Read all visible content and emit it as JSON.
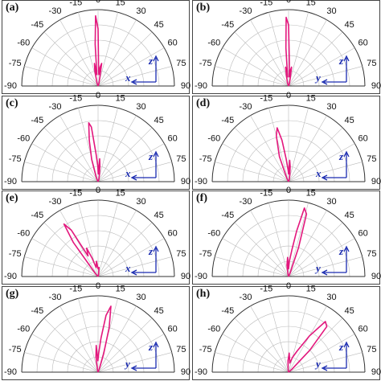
{
  "chart_data": [
    {
      "type": "polar",
      "label": "(a)",
      "color": "#e3177d",
      "rlim": [
        0,
        1
      ],
      "rticks": [
        0.2,
        0.4,
        0.6,
        0.8,
        1
      ],
      "thetaticks": [
        -90,
        -75,
        -60,
        -45,
        -30,
        -15,
        0,
        15,
        30,
        45,
        60,
        75,
        90
      ],
      "axis_labels": [
        "z",
        "x"
      ],
      "theta": [
        -90,
        -20,
        -12,
        -9,
        -6,
        -4,
        -2,
        0,
        2,
        4,
        6,
        9,
        12,
        20,
        90
      ],
      "r": [
        0,
        0.04,
        0.2,
        0.3,
        0.15,
        0.55,
        0.92,
        0.75,
        0.2,
        0.15,
        0.25,
        0.3,
        0.1,
        0.03,
        0
      ]
    },
    {
      "type": "polar",
      "label": "(b)",
      "color": "#e3177d",
      "rlim": [
        0,
        1
      ],
      "rticks": [
        0.2,
        0.4,
        0.6,
        0.8,
        1
      ],
      "thetaticks": [
        -90,
        -75,
        -60,
        -45,
        -30,
        -15,
        0,
        15,
        30,
        45,
        60,
        75,
        90
      ],
      "axis_labels": [
        "z",
        "y"
      ],
      "theta": [
        -90,
        -20,
        -12,
        -9,
        -6,
        -4,
        -2,
        0,
        2,
        4,
        6,
        9,
        12,
        20,
        90
      ],
      "r": [
        0,
        0.04,
        0.12,
        0.25,
        0.12,
        0.5,
        0.9,
        0.8,
        0.3,
        0.12,
        0.2,
        0.25,
        0.1,
        0.03,
        0
      ]
    },
    {
      "type": "polar",
      "label": "(c)",
      "color": "#e3177d",
      "rlim": [
        0,
        1
      ],
      "rticks": [
        0.2,
        0.4,
        0.6,
        0.8,
        1
      ],
      "thetaticks": [
        -90,
        -75,
        -60,
        -45,
        -30,
        -15,
        0,
        15,
        30,
        45,
        60,
        75,
        90
      ],
      "axis_labels": [
        "z",
        "x"
      ],
      "theta": [
        -90,
        -25,
        -16,
        -12,
        -9,
        -7,
        -4,
        -1,
        1,
        4,
        7,
        12,
        20,
        90
      ],
      "r": [
        0,
        0.05,
        0.3,
        0.55,
        0.78,
        0.72,
        0.35,
        0.2,
        0.1,
        0.3,
        0.2,
        0.08,
        0.03,
        0
      ]
    },
    {
      "type": "polar",
      "label": "(d)",
      "color": "#e3177d",
      "rlim": [
        0,
        1
      ],
      "rticks": [
        0.2,
        0.4,
        0.6,
        0.8,
        1
      ],
      "thetaticks": [
        -90,
        -75,
        -60,
        -45,
        -30,
        -15,
        0,
        15,
        30,
        45,
        60,
        75,
        90
      ],
      "axis_labels": [
        "z",
        "x"
      ],
      "theta": [
        -90,
        -28,
        -20,
        -15,
        -12,
        -9,
        -6,
        -2,
        0,
        3,
        6,
        10,
        20,
        90
      ],
      "r": [
        0,
        0.05,
        0.35,
        0.62,
        0.72,
        0.55,
        0.3,
        0.15,
        0.1,
        0.28,
        0.2,
        0.1,
        0.03,
        0
      ]
    },
    {
      "type": "polar",
      "label": "(e)",
      "color": "#e3177d",
      "rlim": [
        0,
        1
      ],
      "rticks": [
        0.2,
        0.4,
        0.6,
        0.8,
        1
      ],
      "thetaticks": [
        -90,
        -75,
        -60,
        -45,
        -30,
        -15,
        0,
        15,
        30,
        45,
        60,
        75,
        90
      ],
      "axis_labels": [
        "z",
        "x"
      ],
      "theta": [
        -90,
        -42,
        -36,
        -33,
        -30,
        -26,
        -22,
        -18,
        -12,
        -6,
        0,
        6,
        15,
        90
      ],
      "r": [
        0,
        0.05,
        0.55,
        0.82,
        0.7,
        0.3,
        0.4,
        0.25,
        0.12,
        0.2,
        0.1,
        0.12,
        0.03,
        0
      ]
    },
    {
      "type": "polar",
      "label": "(f)",
      "color": "#e3177d",
      "rlim": [
        0,
        1
      ],
      "rticks": [
        0.2,
        0.4,
        0.6,
        0.8,
        1
      ],
      "thetaticks": [
        -90,
        -75,
        -60,
        -45,
        -30,
        -15,
        0,
        15,
        30,
        45,
        60,
        75,
        90
      ],
      "axis_labels": [
        "z",
        "y"
      ],
      "theta": [
        -90,
        -15,
        -8,
        -3,
        0,
        3,
        7,
        10,
        13,
        16,
        19,
        24,
        90
      ],
      "r": [
        0,
        0.03,
        0.15,
        0.25,
        0.1,
        0.2,
        0.35,
        0.6,
        0.92,
        0.85,
        0.4,
        0.05,
        0
      ]
    },
    {
      "type": "polar",
      "label": "(g)",
      "color": "#e3177d",
      "rlim": [
        0,
        1
      ],
      "rticks": [
        0.2,
        0.4,
        0.6,
        0.8,
        1
      ],
      "thetaticks": [
        -90,
        -75,
        -60,
        -45,
        -30,
        -15,
        0,
        15,
        30,
        45,
        60,
        75,
        90
      ],
      "axis_labels": [
        "z",
        "y"
      ],
      "theta": [
        -90,
        -15,
        -8,
        -4,
        -1,
        2,
        5,
        8,
        11,
        14,
        17,
        22,
        90
      ],
      "r": [
        0,
        0.03,
        0.2,
        0.35,
        0.15,
        0.25,
        0.45,
        0.75,
        0.88,
        0.6,
        0.25,
        0.04,
        0
      ]
    },
    {
      "type": "polar",
      "label": "(h)",
      "color": "#e3177d",
      "rlim": [
        0,
        1
      ],
      "rticks": [
        0.2,
        0.4,
        0.6,
        0.8,
        1
      ],
      "thetaticks": [
        -90,
        -75,
        -60,
        -45,
        -30,
        -15,
        0,
        15,
        30,
        45,
        60,
        75,
        90
      ],
      "axis_labels": [
        "z",
        "y"
      ],
      "theta": [
        -90,
        -10,
        -3,
        2,
        8,
        15,
        22,
        30,
        36,
        40,
        44,
        50,
        90
      ],
      "r": [
        0,
        0.03,
        0.15,
        0.25,
        0.12,
        0.2,
        0.3,
        0.55,
        0.82,
        0.78,
        0.4,
        0.05,
        0
      ]
    }
  ]
}
